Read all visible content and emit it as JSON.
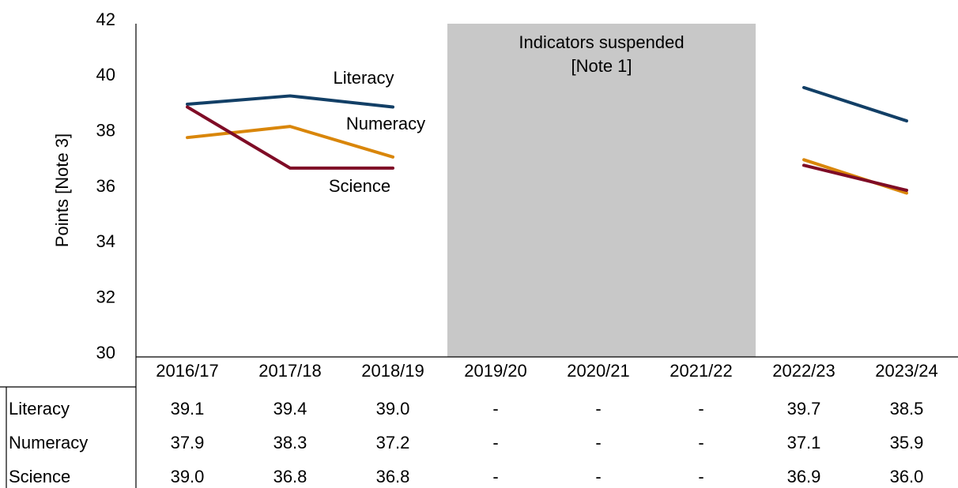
{
  "chart_data": {
    "type": "line",
    "y_axis_label": "Points [Note 3]",
    "categories": [
      "2016/17",
      "2017/18",
      "2018/19",
      "2019/20",
      "2020/21",
      "2021/22",
      "2022/23",
      "2023/24"
    ],
    "series": [
      {
        "name": "Literacy",
        "color": "#123f66",
        "values": [
          39.1,
          39.4,
          39.0,
          null,
          null,
          null,
          39.7,
          38.5
        ],
        "value_labels": [
          "39.1",
          "39.4",
          "39.0",
          "-",
          "-",
          "-",
          "39.7",
          "38.5"
        ]
      },
      {
        "name": "Numeracy",
        "color": "#d9860a",
        "values": [
          37.9,
          38.3,
          37.2,
          null,
          null,
          null,
          37.1,
          35.9
        ],
        "value_labels": [
          "37.9",
          "38.3",
          "37.2",
          "-",
          "-",
          "-",
          "37.1",
          "35.9"
        ]
      },
      {
        "name": "Science",
        "color": "#7f0c26",
        "values": [
          39.0,
          36.8,
          36.8,
          null,
          null,
          null,
          36.9,
          36.0
        ],
        "value_labels": [
          "39.0",
          "36.8",
          "36.8",
          "-",
          "-",
          "-",
          "36.9",
          "36.0"
        ]
      }
    ],
    "shaded_region": {
      "text": [
        "Indicators suspended",
        "[Note 1]"
      ],
      "color": "#c8c8c8"
    },
    "ylim": [
      30,
      42
    ],
    "yticks": [
      30,
      32,
      34,
      36,
      38,
      40,
      42
    ],
    "grid": false
  }
}
